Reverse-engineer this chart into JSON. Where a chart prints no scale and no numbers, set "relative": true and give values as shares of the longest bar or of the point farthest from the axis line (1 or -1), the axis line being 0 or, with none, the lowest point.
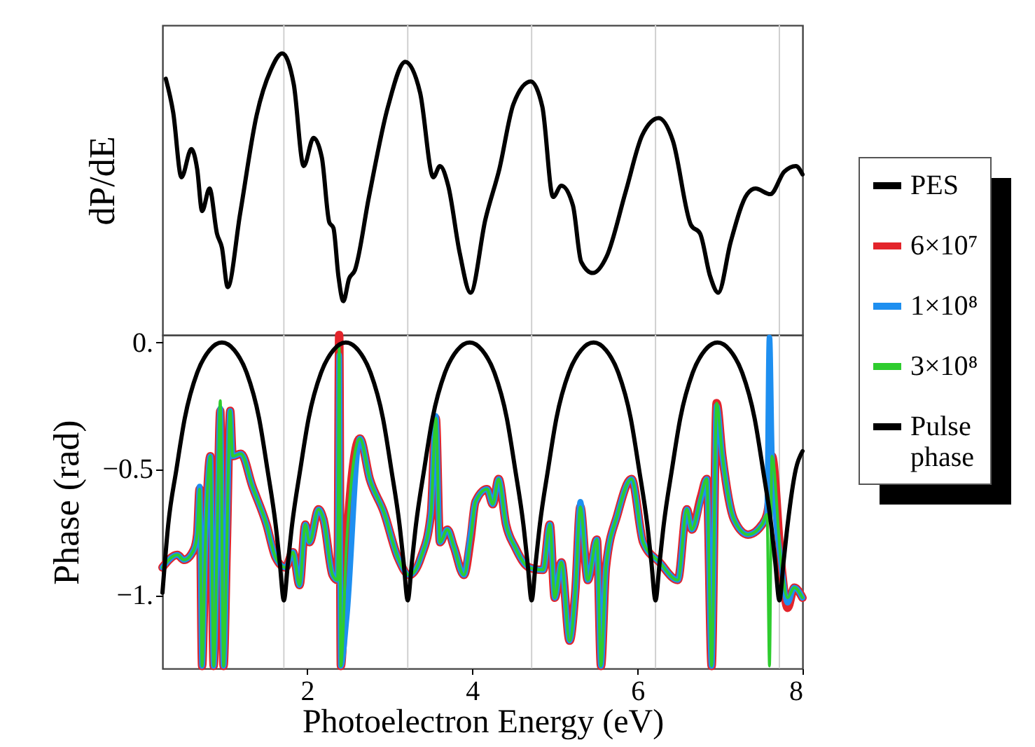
{
  "chart_data": [
    {
      "type": "line",
      "ylabel": "dP/dE",
      "relative": true,
      "xlim": [
        0.25,
        8
      ],
      "xticks": [
        2,
        4,
        6,
        8
      ],
      "tick_labels": false,
      "legend": "right",
      "ref_lines": [
        {
          "axis": "x",
          "value": 1.72,
          "color": "#d0d0d0"
        },
        {
          "axis": "x",
          "value": 3.22,
          "color": "#d0d0d0"
        },
        {
          "axis": "x",
          "value": 4.72,
          "color": "#d0d0d0"
        },
        {
          "axis": "x",
          "value": 6.22,
          "color": "#d0d0d0"
        },
        {
          "axis": "x",
          "value": 7.72,
          "color": "#d0d0d0"
        }
      ],
      "series": [
        {
          "name": "PES",
          "color": "#000000",
          "x": [
            0.29,
            0.38,
            0.48,
            0.6,
            0.67,
            0.73,
            0.82,
            0.91,
            0.97,
            1.04,
            1.19,
            1.39,
            1.56,
            1.7,
            1.84,
            1.96,
            2.08,
            2.18,
            2.27,
            2.32,
            2.38,
            2.44,
            2.51,
            2.58,
            2.75,
            2.98,
            3.19,
            3.37,
            3.53,
            3.61,
            3.71,
            3.85,
            3.98,
            4.16,
            4.33,
            4.5,
            4.71,
            4.85,
            4.98,
            5.08,
            5.22,
            5.32,
            5.46,
            5.63,
            5.86,
            6.06,
            6.26,
            6.43,
            6.65,
            6.76,
            6.88,
            6.98,
            7.13,
            7.33,
            7.43,
            7.61,
            7.78,
            7.92,
            8.0
          ],
          "values": [
            0.91,
            0.79,
            0.56,
            0.66,
            0.59,
            0.44,
            0.52,
            0.36,
            0.31,
            0.17,
            0.43,
            0.78,
            0.94,
            1.0,
            0.89,
            0.6,
            0.7,
            0.63,
            0.4,
            0.38,
            0.21,
            0.12,
            0.2,
            0.23,
            0.49,
            0.81,
            0.97,
            0.86,
            0.56,
            0.6,
            0.53,
            0.29,
            0.15,
            0.41,
            0.59,
            0.82,
            0.9,
            0.81,
            0.49,
            0.53,
            0.46,
            0.26,
            0.22,
            0.28,
            0.51,
            0.71,
            0.77,
            0.69,
            0.39,
            0.36,
            0.21,
            0.15,
            0.33,
            0.5,
            0.52,
            0.5,
            0.58,
            0.6,
            0.57
          ]
        }
      ]
    },
    {
      "type": "line",
      "xlabel": "Photoelectron Energy (eV)",
      "ylabel": "Phase (rad)",
      "xlim": [
        0.25,
        8
      ],
      "xticks": [
        2,
        4,
        6,
        8
      ],
      "ylim": [
        -1.29,
        0.03
      ],
      "yticks": [
        {
          "value": 0,
          "label": "0."
        },
        {
          "value": -0.5,
          "label": "−0.5"
        },
        {
          "value": -1,
          "label": "−1."
        }
      ],
      "legend": "right",
      "ref_lines": [
        {
          "axis": "x",
          "value": 1.72,
          "color": "#d0d0d0"
        },
        {
          "axis": "x",
          "value": 3.22,
          "color": "#d0d0d0"
        },
        {
          "axis": "x",
          "value": 4.72,
          "color": "#d0d0d0"
        },
        {
          "axis": "x",
          "value": 6.22,
          "color": "#d0d0d0"
        },
        {
          "axis": "x",
          "value": 7.72,
          "color": "#d0d0d0"
        }
      ],
      "series": [
        {
          "name": "6×10⁷",
          "color": "#e3242b",
          "x": [
            0.25,
            0.43,
            0.51,
            0.63,
            0.67,
            0.7,
            0.73,
            0.77,
            0.83,
            0.87,
            0.91,
            0.95,
            0.99,
            1.03,
            1.07,
            1.1,
            1.2,
            1.34,
            1.51,
            1.62,
            1.74,
            1.83,
            1.91,
            1.98,
            2.03,
            2.14,
            2.2,
            2.31,
            2.37,
            2.39,
            2.41,
            2.48,
            2.64,
            2.76,
            2.93,
            3.1,
            3.24,
            3.38,
            3.5,
            3.56,
            3.61,
            3.7,
            3.78,
            3.9,
            3.98,
            4.04,
            4.18,
            4.25,
            4.32,
            4.41,
            4.52,
            4.69,
            4.86,
            4.94,
            5.0,
            5.08,
            5.18,
            5.25,
            5.31,
            5.4,
            5.51,
            5.56,
            5.62,
            5.76,
            5.93,
            6.07,
            6.27,
            6.49,
            6.6,
            6.66,
            6.77,
            6.84,
            6.9,
            6.96,
            7.03,
            7.17,
            7.34,
            7.51,
            7.57,
            7.6,
            7.63,
            7.74,
            7.82,
            7.9,
            8.0
          ],
          "values": [
            -0.89,
            -0.84,
            -0.86,
            -0.82,
            -0.76,
            -0.58,
            -1.28,
            -0.79,
            -0.45,
            -1.28,
            -0.81,
            -0.27,
            -1.28,
            -0.79,
            -0.27,
            -0.45,
            -0.44,
            -0.57,
            -0.72,
            -0.85,
            -0.89,
            -0.83,
            -0.96,
            -0.72,
            -0.79,
            -0.66,
            -0.7,
            -0.92,
            -0.94,
            0.03,
            -1.28,
            -0.79,
            -0.38,
            -0.54,
            -0.67,
            -0.85,
            -0.92,
            -0.85,
            -0.68,
            -0.3,
            -0.79,
            -0.74,
            -0.81,
            -0.92,
            -0.78,
            -0.63,
            -0.58,
            -0.64,
            -0.54,
            -0.72,
            -0.81,
            -0.89,
            -0.9,
            -0.72,
            -1.01,
            -0.87,
            -1.18,
            -0.98,
            -0.65,
            -0.94,
            -0.78,
            -1.28,
            -0.89,
            -0.68,
            -0.54,
            -0.79,
            -0.87,
            -0.94,
            -0.66,
            -0.74,
            -0.61,
            -0.54,
            -1.28,
            -0.24,
            -0.45,
            -0.7,
            -0.76,
            -0.72,
            -0.68,
            -0.61,
            -0.45,
            -0.87,
            -1.05,
            -0.97,
            -1.01
          ]
        },
        {
          "name": "1×10⁸",
          "color": "#1e8ff0",
          "x": [
            0.25,
            0.43,
            0.51,
            0.63,
            0.67,
            0.7,
            0.73,
            0.77,
            0.83,
            0.87,
            0.91,
            0.95,
            0.99,
            1.03,
            1.07,
            1.1,
            1.2,
            1.34,
            1.51,
            1.62,
            1.74,
            1.83,
            1.91,
            1.98,
            2.03,
            2.14,
            2.2,
            2.31,
            2.37,
            2.39,
            2.41,
            2.48,
            2.64,
            2.76,
            2.93,
            3.1,
            3.24,
            3.38,
            3.5,
            3.56,
            3.61,
            3.7,
            3.78,
            3.9,
            3.98,
            4.04,
            4.18,
            4.25,
            4.32,
            4.41,
            4.52,
            4.69,
            4.86,
            4.94,
            5.0,
            5.08,
            5.18,
            5.25,
            5.31,
            5.4,
            5.51,
            5.56,
            5.62,
            5.76,
            5.93,
            6.07,
            6.27,
            6.49,
            6.6,
            6.66,
            6.77,
            6.84,
            6.9,
            6.96,
            7.03,
            7.17,
            7.34,
            7.51,
            7.57,
            7.6,
            7.63,
            7.74,
            7.82,
            7.9,
            8.0
          ],
          "values": [
            -0.89,
            -0.84,
            -0.86,
            -0.82,
            -0.76,
            -0.57,
            -1.28,
            -0.79,
            -0.45,
            -1.28,
            -0.81,
            -0.26,
            -1.28,
            -0.79,
            -0.27,
            -0.45,
            -0.44,
            -0.57,
            -0.72,
            -0.85,
            -0.89,
            -0.83,
            -0.96,
            -0.72,
            -0.79,
            -0.66,
            -0.7,
            -0.92,
            -0.94,
            -0.05,
            -1.28,
            -1.09,
            -0.38,
            -0.54,
            -0.67,
            -0.85,
            -0.92,
            -0.85,
            -0.68,
            -0.29,
            -0.79,
            -0.74,
            -0.81,
            -0.92,
            -0.76,
            -0.63,
            -0.58,
            -0.64,
            -0.54,
            -0.72,
            -0.81,
            -0.89,
            -0.9,
            -0.72,
            -1.01,
            -0.87,
            -1.18,
            -0.98,
            -0.63,
            -0.94,
            -0.78,
            -1.28,
            -0.89,
            -0.68,
            -0.54,
            -0.79,
            -0.87,
            -0.94,
            -0.66,
            -0.74,
            -0.62,
            -0.54,
            -1.28,
            -0.25,
            -0.45,
            -0.7,
            -0.76,
            -0.72,
            -0.68,
            0.02,
            -0.45,
            -0.87,
            -1.03,
            -0.97,
            -1.01
          ]
        },
        {
          "name": "3×10⁸",
          "color": "#2ecc2e",
          "x": [
            0.25,
            0.43,
            0.51,
            0.63,
            0.67,
            0.7,
            0.73,
            0.77,
            0.83,
            0.87,
            0.91,
            0.95,
            0.99,
            1.03,
            1.07,
            1.1,
            1.2,
            1.34,
            1.51,
            1.62,
            1.74,
            1.83,
            1.91,
            1.98,
            2.03,
            2.14,
            2.2,
            2.31,
            2.37,
            2.39,
            2.41,
            2.48,
            2.64,
            2.76,
            2.93,
            3.1,
            3.24,
            3.38,
            3.5,
            3.56,
            3.61,
            3.7,
            3.78,
            3.9,
            3.98,
            4.04,
            4.18,
            4.25,
            4.32,
            4.41,
            4.52,
            4.69,
            4.86,
            4.94,
            5.0,
            5.08,
            5.18,
            5.25,
            5.31,
            5.4,
            5.51,
            5.56,
            5.62,
            5.76,
            5.93,
            6.07,
            6.27,
            6.49,
            6.6,
            6.66,
            6.77,
            6.84,
            6.9,
            6.96,
            7.03,
            7.17,
            7.34,
            7.51,
            7.57,
            7.6,
            7.63,
            7.74,
            7.82,
            7.9,
            8.0
          ],
          "values": [
            -0.89,
            -0.84,
            -0.86,
            -0.82,
            -0.76,
            -0.58,
            -1.28,
            -0.79,
            -0.45,
            -1.28,
            -0.81,
            -0.23,
            -1.28,
            -0.79,
            -0.27,
            -0.45,
            -0.44,
            -0.57,
            -0.72,
            -0.85,
            -0.89,
            -0.83,
            -0.96,
            -0.72,
            -0.79,
            -0.66,
            -0.7,
            -0.92,
            -0.94,
            -0.02,
            -1.28,
            -0.79,
            -0.38,
            -0.54,
            -0.67,
            -0.85,
            -0.92,
            -0.85,
            -0.68,
            -0.3,
            -0.79,
            -0.74,
            -0.81,
            -0.92,
            -0.78,
            -0.63,
            -0.58,
            -0.64,
            -0.54,
            -0.72,
            -0.81,
            -0.89,
            -0.9,
            -0.72,
            -1.01,
            -0.87,
            -1.18,
            -0.98,
            -0.65,
            -0.94,
            -0.78,
            -1.28,
            -0.89,
            -0.68,
            -0.54,
            -0.79,
            -0.87,
            -0.94,
            -0.66,
            -0.74,
            -0.61,
            -0.54,
            -1.28,
            -0.24,
            -0.45,
            -0.7,
            -0.76,
            -0.72,
            -0.68,
            -1.28,
            -0.45,
            -0.87,
            -1.01,
            -0.97,
            -1.01
          ]
        },
        {
          "name": "Pulse phase",
          "color": "#000000",
          "x": [
            0.25,
            0.32,
            0.42,
            0.52,
            0.67,
            0.82,
            0.97,
            1.12,
            1.27,
            1.42,
            1.52,
            1.62,
            1.67,
            1.72,
            1.77,
            1.82,
            1.92,
            2.02,
            2.17,
            2.32,
            2.47,
            2.62,
            2.77,
            2.92,
            3.02,
            3.12,
            3.17,
            3.22,
            3.27,
            3.32,
            3.42,
            3.52,
            3.67,
            3.82,
            3.97,
            4.12,
            4.27,
            4.42,
            4.52,
            4.62,
            4.67,
            4.72,
            4.77,
            4.82,
            4.92,
            5.02,
            5.17,
            5.32,
            5.47,
            5.62,
            5.77,
            5.92,
            6.02,
            6.12,
            6.17,
            6.22,
            6.27,
            6.32,
            6.42,
            6.52,
            6.67,
            6.82,
            6.97,
            7.12,
            7.27,
            7.42,
            7.52,
            7.62,
            7.67,
            7.72,
            7.77,
            7.82,
            7.92,
            8.0
          ],
          "values": [
            -0.99,
            -0.72,
            -0.5,
            -0.3,
            -0.12,
            -0.03,
            0,
            -0.03,
            -0.12,
            -0.3,
            -0.5,
            -0.72,
            -0.87,
            -1.02,
            -0.87,
            -0.72,
            -0.5,
            -0.3,
            -0.12,
            -0.03,
            0,
            -0.03,
            -0.12,
            -0.3,
            -0.5,
            -0.72,
            -0.87,
            -1.02,
            -0.87,
            -0.72,
            -0.5,
            -0.3,
            -0.12,
            -0.03,
            0,
            -0.03,
            -0.12,
            -0.3,
            -0.5,
            -0.72,
            -0.87,
            -1.02,
            -0.87,
            -0.72,
            -0.5,
            -0.3,
            -0.12,
            -0.03,
            0,
            -0.03,
            -0.12,
            -0.3,
            -0.5,
            -0.72,
            -0.87,
            -1.02,
            -0.87,
            -0.72,
            -0.5,
            -0.3,
            -0.12,
            -0.03,
            0,
            -0.03,
            -0.12,
            -0.3,
            -0.5,
            -0.72,
            -0.87,
            -1.02,
            -0.87,
            -0.72,
            -0.5,
            -0.43
          ]
        }
      ]
    }
  ]
}
